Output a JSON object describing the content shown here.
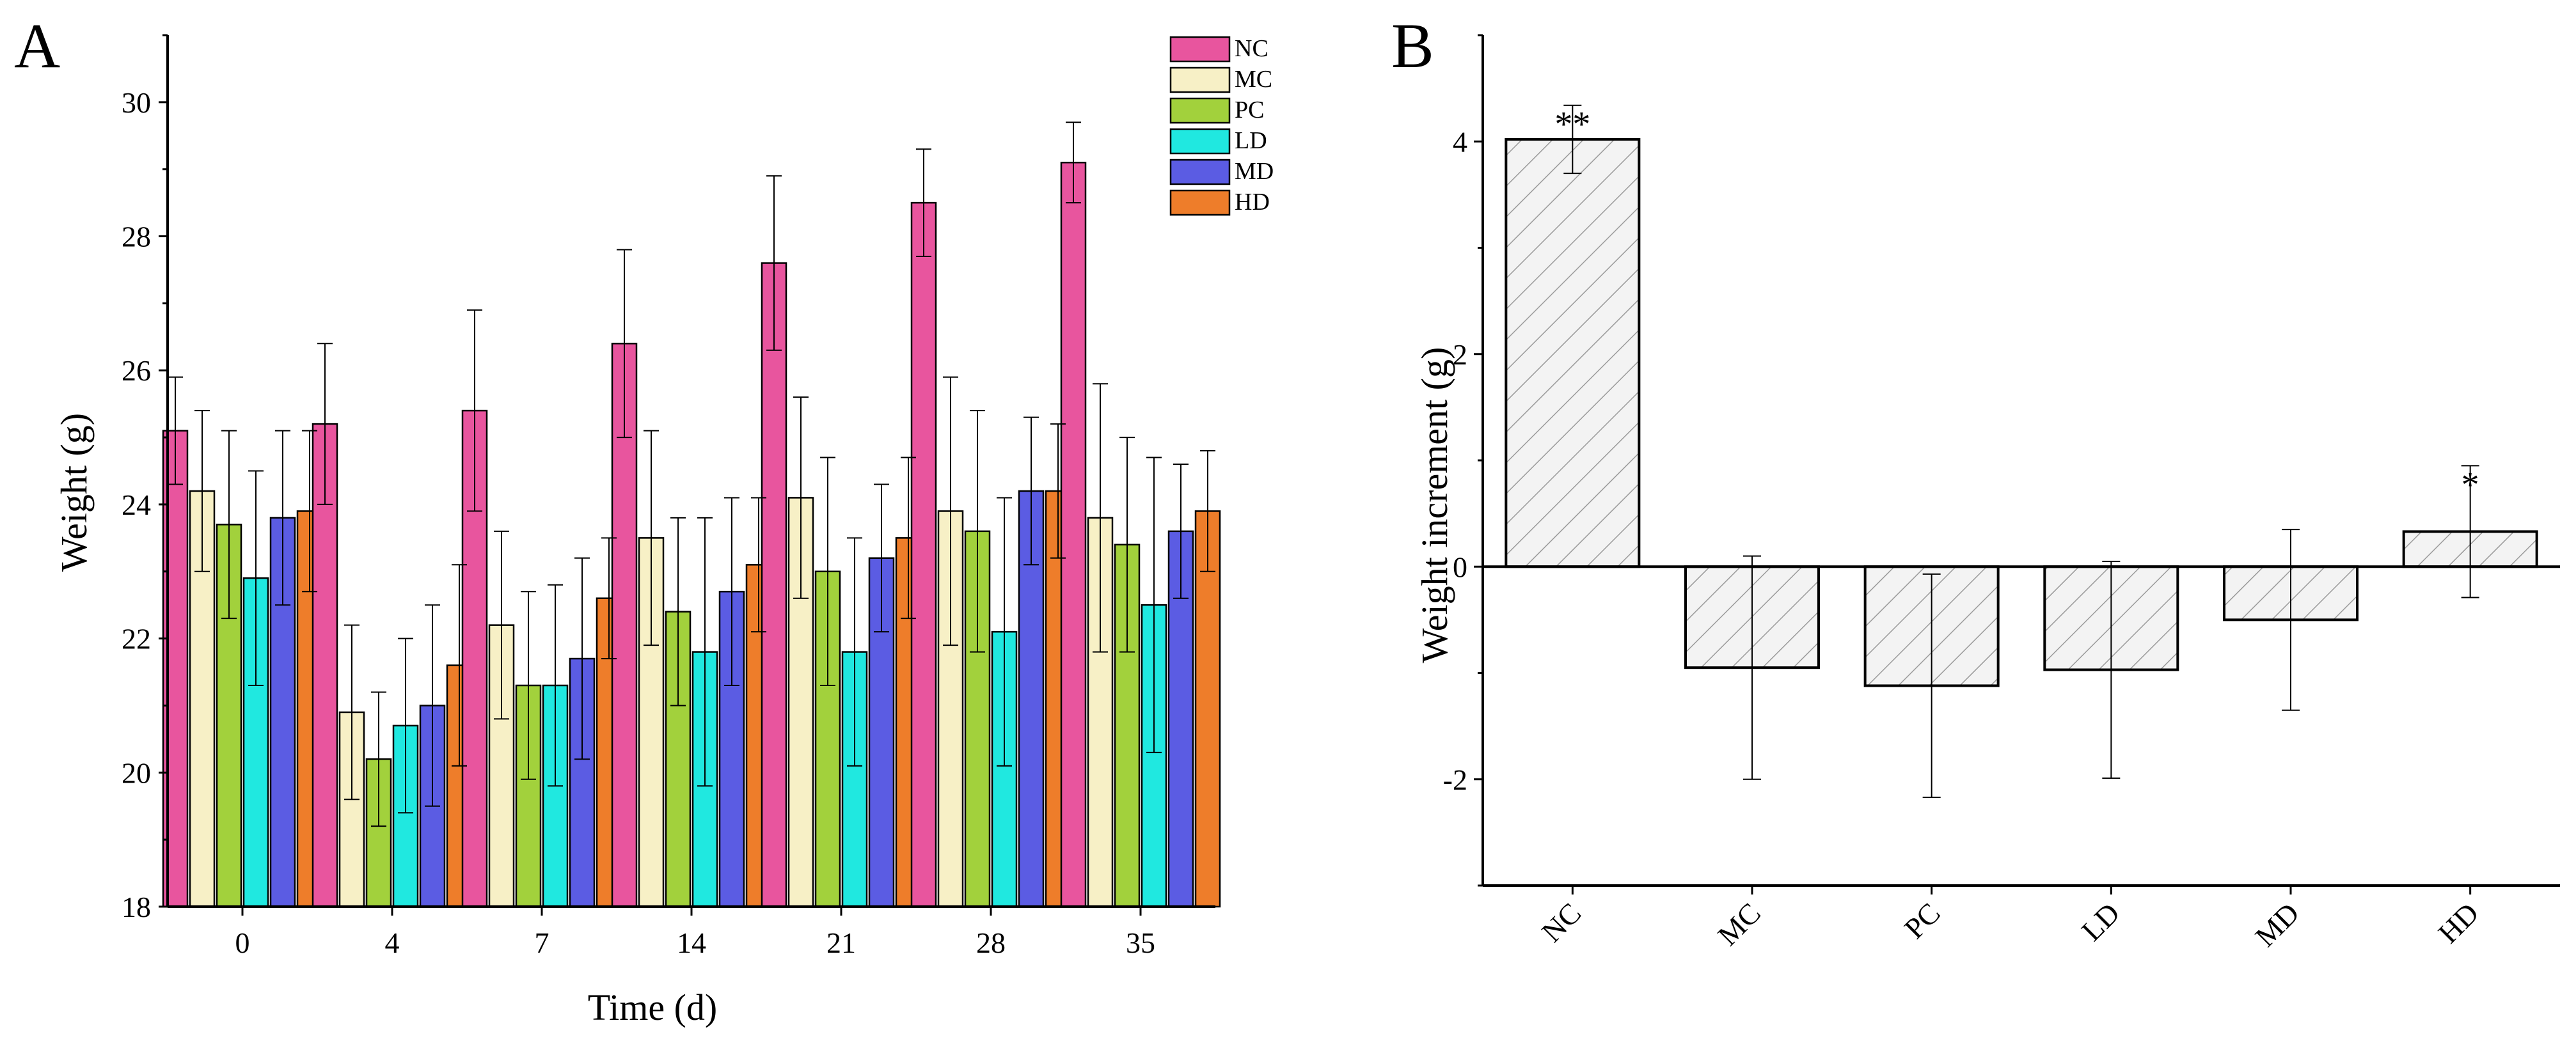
{
  "chart_data": [
    {
      "panel": "A",
      "type": "bar",
      "xlabel": "Time (d)",
      "ylabel": "Weight (g)",
      "categories": [
        "0",
        "4",
        "7",
        "14",
        "21",
        "28",
        "35"
      ],
      "ylim": [
        18,
        31
      ],
      "yticks": [
        "18",
        "20",
        "22",
        "24",
        "26",
        "28",
        "30"
      ],
      "legend_position": "top-right",
      "grid": false,
      "series": [
        {
          "name": "NC",
          "color": "#E8559E",
          "values": [
            25.1,
            25.2,
            25.4,
            26.4,
            27.6,
            28.5,
            29.1
          ],
          "errors": [
            0.8,
            1.2,
            1.5,
            1.4,
            1.3,
            0.8,
            0.6
          ]
        },
        {
          "name": "MC",
          "color": "#F7F0C6",
          "values": [
            24.2,
            20.9,
            22.2,
            23.5,
            24.1,
            23.9,
            23.8
          ],
          "errors": [
            1.2,
            1.3,
            1.4,
            1.6,
            1.5,
            2.0,
            2.0
          ]
        },
        {
          "name": "PC",
          "color": "#A2D13C",
          "values": [
            23.7,
            20.2,
            21.3,
            22.4,
            23.0,
            23.6,
            23.4
          ],
          "errors": [
            1.4,
            1.0,
            1.4,
            1.4,
            1.7,
            1.8,
            1.6
          ]
        },
        {
          "name": "LD",
          "color": "#20E8E0",
          "values": [
            22.9,
            20.7,
            21.3,
            21.8,
            21.8,
            22.1,
            22.5
          ],
          "errors": [
            1.6,
            1.3,
            1.5,
            2.0,
            1.7,
            2.0,
            2.2
          ]
        },
        {
          "name": "MD",
          "color": "#5B5CE3",
          "values": [
            23.8,
            21.0,
            21.7,
            22.7,
            23.2,
            24.2,
            23.6
          ],
          "errors": [
            1.3,
            1.5,
            1.5,
            1.4,
            1.1,
            1.1,
            1.0
          ]
        },
        {
          "name": "HD",
          "color": "#EE7D2A",
          "values": [
            23.9,
            21.6,
            22.6,
            23.1,
            23.5,
            24.2,
            23.9
          ],
          "errors": [
            1.2,
            1.5,
            0.9,
            1.0,
            1.2,
            1.0,
            0.9
          ]
        }
      ]
    },
    {
      "panel": "B",
      "type": "bar",
      "xlabel": "",
      "ylabel": "Weight increment (g)",
      "categories": [
        "NC",
        "MC",
        "PC",
        "LD",
        "MD",
        "HD"
      ],
      "ylim": [
        -3,
        5
      ],
      "yticks": [
        "-2",
        "0",
        "2",
        "4"
      ],
      "grid": false,
      "fill": "hatched light gray",
      "values": [
        4.02,
        -0.95,
        -1.12,
        -0.97,
        -0.5,
        0.33
      ],
      "errors": [
        0.32,
        1.05,
        1.05,
        1.02,
        0.85,
        0.62
      ],
      "annotations": [
        "**",
        "",
        "",
        "",
        "",
        "*"
      ]
    }
  ]
}
